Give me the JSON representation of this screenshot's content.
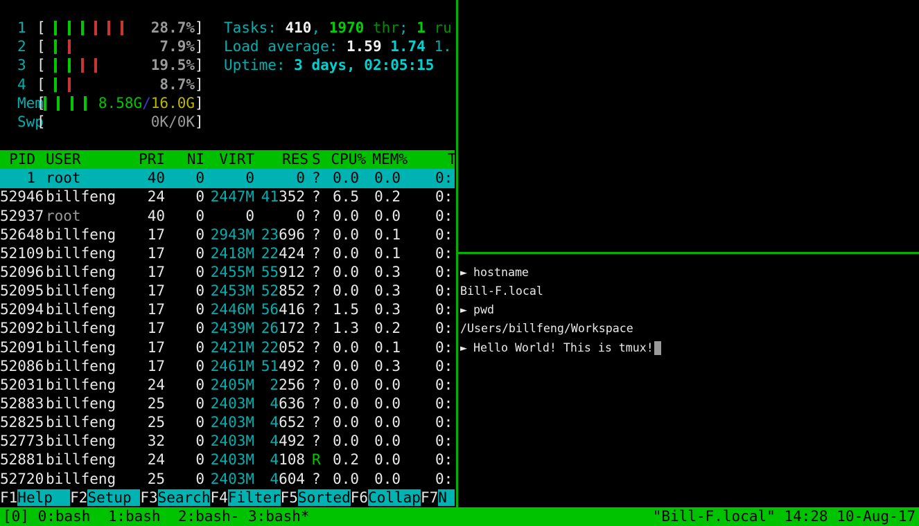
{
  "colors": {
    "accent_green_bg": "#00bf00",
    "accent_cyan_bg": "#00b3b3",
    "border_green": "#00b200",
    "clock_blue": "#3535d6",
    "bar_green": "#00c800",
    "bar_red": "#c93434"
  },
  "meters": {
    "cpus": [
      {
        "label": "1",
        "pct": "28.7%",
        "bars": [
          "g",
          "g",
          "g",
          "r",
          "r",
          "r"
        ]
      },
      {
        "label": "2",
        "pct": "7.9%",
        "bars": [
          "g",
          "r"
        ]
      },
      {
        "label": "3",
        "pct": "19.5%",
        "bars": [
          "g",
          "g",
          "r",
          "r"
        ]
      },
      {
        "label": "4",
        "pct": "8.7%",
        "bars": [
          "g",
          "r"
        ]
      }
    ],
    "mem": {
      "label": "Mem",
      "bars": [
        "g",
        "g",
        "g",
        "g"
      ],
      "used": "8.58G",
      "slash": "/",
      "total": "16.0G"
    },
    "swp": {
      "label": "Swp",
      "value": "0K/0K"
    }
  },
  "summary": {
    "line1": [
      [
        "c-cyan",
        "Tasks: "
      ],
      [
        "c-bwhite",
        "410"
      ],
      [
        "c-cyan",
        ", "
      ],
      [
        "c-bgreen",
        "1970"
      ],
      [
        "c-dgreen",
        " thr"
      ],
      [
        "c-cyan",
        "; "
      ],
      [
        "c-bgreen",
        "1"
      ],
      [
        "c-dgreen",
        " ru"
      ]
    ],
    "line2": [
      [
        "c-cyan",
        "Load average: "
      ],
      [
        "c-bwhite",
        "1.59 "
      ],
      [
        "c-bcyan",
        "1.74 "
      ],
      [
        "c-cyan",
        "1."
      ]
    ],
    "line3": [
      [
        "c-cyan",
        "Uptime: "
      ],
      [
        "c-bcyan",
        "3 days, 02:05:15"
      ]
    ]
  },
  "table": {
    "headers": {
      "pid": "PID",
      "user": "USER",
      "pri": "PRI",
      "ni": "NI",
      "virt": "VIRT",
      "res": "RES",
      "s": "S",
      "cpu": "CPU%",
      "mem": "MEM%",
      "time": "T"
    },
    "rows": [
      {
        "pid": "1",
        "user": "root",
        "pri": "40",
        "ni": "0",
        "virt": "0",
        "res_hi": "",
        "res_lo": "0",
        "s": "?",
        "cpu": "0.0",
        "mem": "0.0",
        "time": "0:",
        "selected": true,
        "virt_plain": true
      },
      {
        "pid": "52946",
        "user": "billfeng",
        "pri": "24",
        "ni": "0",
        "virt": "2447M",
        "res_hi": "41",
        "res_lo": "352",
        "s": "?",
        "cpu": "6.5",
        "mem": "0.2",
        "time": "0:"
      },
      {
        "pid": "52937",
        "user": "root",
        "pri": "40",
        "ni": "0",
        "virt": "0",
        "res_hi": "",
        "res_lo": "0",
        "s": "?",
        "cpu": "0.0",
        "mem": "0.0",
        "time": "0:",
        "dim_user": true,
        "virt_plain": true
      },
      {
        "pid": "52648",
        "user": "billfeng",
        "pri": "17",
        "ni": "0",
        "virt": "2943M",
        "res_hi": "23",
        "res_lo": "696",
        "s": "?",
        "cpu": "0.0",
        "mem": "0.1",
        "time": "0:"
      },
      {
        "pid": "52109",
        "user": "billfeng",
        "pri": "17",
        "ni": "0",
        "virt": "2418M",
        "res_hi": "22",
        "res_lo": "424",
        "s": "?",
        "cpu": "0.0",
        "mem": "0.1",
        "time": "0:"
      },
      {
        "pid": "52096",
        "user": "billfeng",
        "pri": "17",
        "ni": "0",
        "virt": "2455M",
        "res_hi": "55",
        "res_lo": "912",
        "s": "?",
        "cpu": "0.0",
        "mem": "0.3",
        "time": "0:"
      },
      {
        "pid": "52095",
        "user": "billfeng",
        "pri": "17",
        "ni": "0",
        "virt": "2453M",
        "res_hi": "52",
        "res_lo": "852",
        "s": "?",
        "cpu": "0.0",
        "mem": "0.3",
        "time": "0:"
      },
      {
        "pid": "52094",
        "user": "billfeng",
        "pri": "17",
        "ni": "0",
        "virt": "2446M",
        "res_hi": "56",
        "res_lo": "416",
        "s": "?",
        "cpu": "1.5",
        "mem": "0.3",
        "time": "0:"
      },
      {
        "pid": "52092",
        "user": "billfeng",
        "pri": "17",
        "ni": "0",
        "virt": "2439M",
        "res_hi": "26",
        "res_lo": "172",
        "s": "?",
        "cpu": "1.3",
        "mem": "0.2",
        "time": "0:"
      },
      {
        "pid": "52091",
        "user": "billfeng",
        "pri": "17",
        "ni": "0",
        "virt": "2421M",
        "res_hi": "22",
        "res_lo": "052",
        "s": "?",
        "cpu": "0.0",
        "mem": "0.1",
        "time": "0:"
      },
      {
        "pid": "52086",
        "user": "billfeng",
        "pri": "17",
        "ni": "0",
        "virt": "2461M",
        "res_hi": "51",
        "res_lo": "492",
        "s": "?",
        "cpu": "0.0",
        "mem": "0.3",
        "time": "0:"
      },
      {
        "pid": "52031",
        "user": "billfeng",
        "pri": "24",
        "ni": "0",
        "virt": "2405M",
        "res_hi": "2",
        "res_lo": "256",
        "s": "?",
        "cpu": "0.0",
        "mem": "0.0",
        "time": "0:"
      },
      {
        "pid": "52883",
        "user": "billfeng",
        "pri": "25",
        "ni": "0",
        "virt": "2403M",
        "res_hi": "4",
        "res_lo": "636",
        "s": "?",
        "cpu": "0.0",
        "mem": "0.0",
        "time": "0:"
      },
      {
        "pid": "52825",
        "user": "billfeng",
        "pri": "25",
        "ni": "0",
        "virt": "2403M",
        "res_hi": "4",
        "res_lo": "652",
        "s": "?",
        "cpu": "0.0",
        "mem": "0.0",
        "time": "0:"
      },
      {
        "pid": "52773",
        "user": "billfeng",
        "pri": "32",
        "ni": "0",
        "virt": "2403M",
        "res_hi": "4",
        "res_lo": "492",
        "s": "?",
        "cpu": "0.0",
        "mem": "0.0",
        "time": "0:"
      },
      {
        "pid": "52881",
        "user": "billfeng",
        "pri": "24",
        "ni": "0",
        "virt": "2403M",
        "res_hi": "4",
        "res_lo": "108",
        "s": "R",
        "cpu": "0.2",
        "mem": "0.0",
        "time": "0:",
        "s_run": true
      },
      {
        "pid": "52720",
        "user": "billfeng",
        "pri": "25",
        "ni": "0",
        "virt": "2403M",
        "res_hi": "4",
        "res_lo": "604",
        "s": "?",
        "cpu": "0.0",
        "mem": "0.0",
        "time": "0:"
      }
    ]
  },
  "fkeys": [
    {
      "key": "F1",
      "label": "Help  "
    },
    {
      "key": "F2",
      "label": "Setup "
    },
    {
      "key": "F3",
      "label": "Search"
    },
    {
      "key": "F4",
      "label": "Filter"
    },
    {
      "key": "F5",
      "label": "Sorted"
    },
    {
      "key": "F6",
      "label": "Collap"
    },
    {
      "key": "F7",
      "label": "N "
    }
  ],
  "clock": {
    "time": "14:28"
  },
  "shell": {
    "lines": [
      {
        "prompt": true,
        "text": "hostname"
      },
      {
        "prompt": false,
        "text": "Bill-F.local"
      },
      {
        "prompt": true,
        "text": "pwd"
      },
      {
        "prompt": false,
        "text": "/Users/billfeng/Workspace"
      },
      {
        "prompt": true,
        "text": "Hello World! This is tmux!",
        "cursor": true
      }
    ]
  },
  "statusbar": {
    "left": "[0] 0:bash  1:bash  2:bash- 3:bash*",
    "right": "\"Bill-F.local\" 14:28 10-Aug-17"
  }
}
